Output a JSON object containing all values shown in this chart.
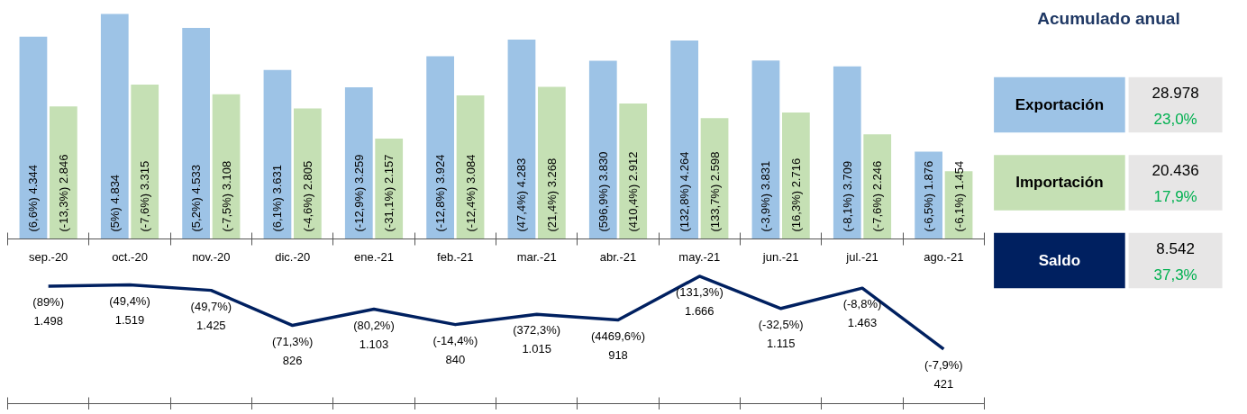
{
  "chart_data": [
    {
      "type": "bar",
      "categories": [
        "sep.-20",
        "oct.-20",
        "nov.-20",
        "dic.-20",
        "ene.-21",
        "feb.-21",
        "mar.-21",
        "abr.-21",
        "may.-21",
        "jun.-21",
        "jul.-21",
        "ago.-21"
      ],
      "series": [
        {
          "color": "#9dc3e6",
          "values": [
            4344,
            4834,
            4533,
            3631,
            3259,
            3924,
            4283,
            3830,
            4264,
            3831,
            3709,
            1876
          ],
          "value_labels": [
            "(6,6%) 4.344",
            "(5%) 4.834",
            "(5,2%) 4.533",
            "(6,1%) 3.631",
            "(-12,9%) 3.259",
            "(-12,8%) 3.924",
            "(47,4%) 4.283",
            "(596,9%) 3.830",
            "(132,8%) 4.264",
            "(-3,9%) 3.831",
            "(-8,1%) 3.709",
            "(-6,5%) 1.876"
          ]
        },
        {
          "color": "#c5e0b4",
          "values": [
            2846,
            3315,
            3108,
            2805,
            2157,
            3084,
            3268,
            2912,
            2598,
            2716,
            2246,
            1454
          ],
          "value_labels": [
            "(-13,3%) 2.846",
            "(-7,6%) 3.315",
            "(-7,5%) 3.108",
            "(-4,6%) 2.805",
            "(-31,1%) 2.157",
            "(-12,4%) 3.084",
            "(21,4%) 3.268",
            "(410,4%) 2.912",
            "(133,7%) 2.598",
            "(16,3%) 2.716",
            "(-7,6%) 2.246",
            "(-6,1%) 1.454"
          ]
        }
      ]
    },
    {
      "type": "line",
      "categories": [
        null,
        null,
        null,
        null,
        null,
        null,
        null,
        null,
        null,
        null,
        null,
        null
      ],
      "series": [
        {
          "color": "#002060",
          "values": [
            1498,
            1519,
            1425,
            826,
            1103,
            840,
            1015,
            918,
            1666,
            1115,
            1463,
            421
          ],
          "value_labels": [
            "(89%)\n1.498",
            "(49,4%)\n1.519",
            "(49,7%)\n1.425",
            "(71,3%)\n826",
            "(80,2%)\n1.103",
            "(-14,4%)\n840",
            "(372,3%)\n1.015",
            "(4469,6%)\n918",
            "(131,3%)\n1.666",
            "(-32,5%)\n1.115",
            "(-8,8%)\n1.463",
            "(-7,9%)\n421"
          ]
        }
      ]
    },
    {
      "type": "other",
      "title": "Acumulado anual",
      "categories": [
        "Exportación",
        "Importación",
        "Saldo"
      ],
      "value_labels": [
        "28.978",
        "20.436",
        "8.542"
      ],
      "colors": [
        "#9dc3e6",
        "#c5e0b4",
        "#002060"
      ],
      "annotations": [
        "23,0%",
        "17,9%",
        "37,3%"
      ]
    }
  ]
}
